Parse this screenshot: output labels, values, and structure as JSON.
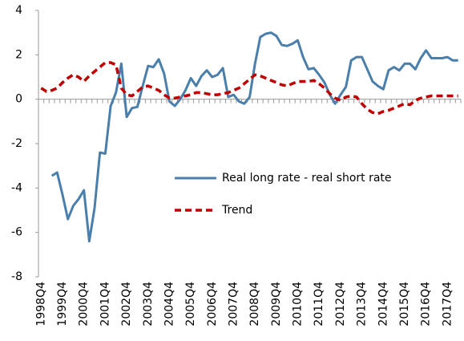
{
  "chart_data": {
    "type": "line",
    "categories": [
      "1998Q4",
      null,
      null,
      null,
      "1999Q4",
      null,
      null,
      null,
      "2000Q4",
      null,
      null,
      null,
      "2001Q4",
      null,
      null,
      null,
      "2002Q4",
      null,
      null,
      null,
      "2003Q4",
      null,
      null,
      null,
      "2004Q4",
      null,
      null,
      null,
      "2005Q4",
      null,
      null,
      null,
      "2006Q4",
      null,
      null,
      null,
      "2007Q4",
      null,
      null,
      null,
      "2008Q4",
      null,
      null,
      null,
      "2009Q4",
      null,
      null,
      null,
      "2010Q4",
      null,
      null,
      null,
      "2011Q4",
      null,
      null,
      null,
      "2012Q4",
      null,
      null,
      null,
      "2013Q4",
      null,
      null,
      null,
      "2014Q4",
      null,
      null,
      null,
      "2015Q4",
      null,
      null,
      null,
      "2016Q4",
      null,
      null,
      null,
      "2017Q4",
      null,
      null
    ],
    "series": [
      {
        "name": "Real long rate - real short rate",
        "color": "#4a7fab",
        "dashed": false,
        "values": [
          null,
          null,
          -3.45,
          -3.3,
          -4.3,
          -5.4,
          -4.8,
          -4.5,
          -4.1,
          -6.4,
          -4.9,
          -2.4,
          -2.45,
          -0.3,
          0.3,
          1.6,
          -0.8,
          -0.4,
          -0.35,
          0.6,
          1.5,
          1.45,
          1.8,
          1.15,
          -0.1,
          -0.3,
          0.0,
          0.4,
          0.95,
          0.6,
          1.05,
          1.3,
          1.0,
          1.1,
          1.4,
          0.1,
          0.2,
          -0.1,
          -0.2,
          0.1,
          1.6,
          2.8,
          2.95,
          3.0,
          2.85,
          2.45,
          2.4,
          2.5,
          2.65,
          1.9,
          1.35,
          1.4,
          1.1,
          0.75,
          0.2,
          -0.2,
          0.2,
          0.55,
          1.75,
          1.9,
          1.9,
          1.35,
          0.8,
          0.6,
          0.45,
          1.3,
          1.45,
          1.3,
          1.6,
          1.6,
          1.35,
          1.85,
          2.2,
          1.85,
          1.85,
          1.85,
          1.9,
          1.75,
          1.75
        ]
      },
      {
        "name": "Trend",
        "color": "#c00000",
        "dashed": true,
        "values": [
          0.5,
          0.35,
          0.4,
          0.5,
          0.75,
          0.95,
          1.1,
          1.0,
          0.8,
          1.05,
          1.25,
          1.45,
          1.65,
          1.65,
          1.55,
          0.5,
          0.2,
          0.15,
          0.35,
          0.55,
          0.6,
          0.5,
          0.4,
          0.2,
          0.05,
          0.05,
          0.1,
          0.15,
          0.2,
          0.3,
          0.3,
          0.25,
          0.2,
          0.2,
          0.25,
          0.3,
          0.4,
          0.5,
          0.7,
          0.9,
          1.1,
          1.05,
          0.95,
          0.85,
          0.75,
          0.65,
          0.6,
          0.7,
          0.8,
          0.8,
          0.8,
          0.85,
          0.7,
          0.5,
          0.25,
          0.05,
          -0.05,
          0.1,
          0.15,
          0.1,
          -0.2,
          -0.45,
          -0.6,
          -0.65,
          -0.55,
          -0.5,
          -0.4,
          -0.3,
          -0.2,
          -0.25,
          -0.05,
          0.05,
          0.1,
          0.15,
          0.15,
          0.15,
          0.15,
          0.15,
          0.15
        ]
      }
    ],
    "ylim": [
      -8,
      4
    ],
    "yticks": [
      -8,
      -6,
      -4,
      -2,
      0,
      2,
      4
    ],
    "grid": false
  }
}
